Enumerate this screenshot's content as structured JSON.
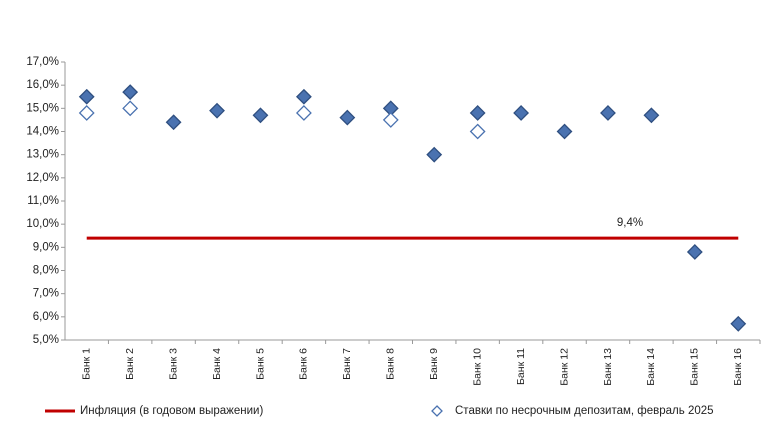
{
  "chart_data": {
    "type": "scatter",
    "categories": [
      "Банк 1",
      "Банк 2",
      "Банк 3",
      "Банк 4",
      "Банк 5",
      "Банк 6",
      "Банк 7",
      "Банк 8",
      "Банк 9",
      "Банк 10",
      "Банк 11",
      "Банк 12",
      "Банк 13",
      "Банк 14",
      "Банк 15",
      "Банк 16"
    ],
    "series": [
      {
        "color": "#4a72b0",
        "filled": true,
        "values": [
          15.5,
          15.7,
          14.4,
          14.9,
          14.7,
          15.5,
          14.6,
          15.0,
          13.0,
          14.8,
          14.8,
          14.0,
          14.8,
          14.7,
          8.8,
          5.7
        ]
      },
      {
        "name": "Ставки по несрочным депозитам, февраль 2025",
        "color": "#4a72b0",
        "filled": false,
        "values": [
          14.8,
          15.0,
          null,
          null,
          null,
          14.8,
          null,
          14.5,
          null,
          14.0,
          null,
          null,
          null,
          null,
          null,
          null
        ]
      }
    ],
    "reference_line": {
      "name": "Инфляция (в годовом выражении)",
      "color": "#c00000",
      "values": [
        9.4
      ],
      "value_labels": [
        "9,4%"
      ]
    },
    "ylim": [
      5,
      17
    ],
    "yticks": [
      {
        "value": 5,
        "label": "5,0%"
      },
      {
        "value": 6,
        "label": "6,0%"
      },
      {
        "value": 7,
        "label": "7,0%"
      },
      {
        "value": 8,
        "label": "8,0%"
      },
      {
        "value": 9,
        "label": "9,0%"
      },
      {
        "value": 10,
        "label": "10,0%"
      },
      {
        "value": 11,
        "label": "11,0%"
      },
      {
        "value": 12,
        "label": "12,0%"
      },
      {
        "value": 13,
        "label": "13,0%"
      },
      {
        "value": 14,
        "label": "14,0%"
      },
      {
        "value": 15,
        "label": "15,0%"
      },
      {
        "value": 16,
        "label": "16,0%"
      },
      {
        "value": 17,
        "label": "17,0%"
      }
    ],
    "grid": false,
    "legend": "bottom"
  }
}
